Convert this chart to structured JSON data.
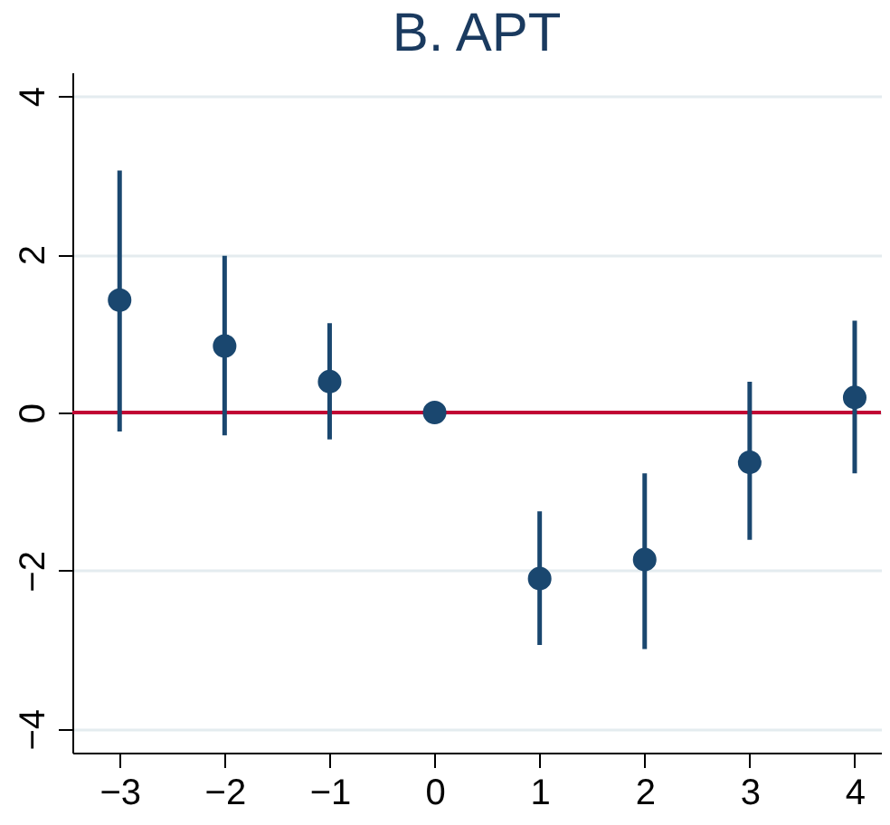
{
  "chart_data": {
    "type": "scatter",
    "title": "B. APT",
    "x": [
      -3,
      -2,
      -1,
      0,
      1,
      2,
      3,
      4
    ],
    "series": [
      {
        "color": "#1a476f",
        "values": [
          1.42,
          0.84,
          0.39,
          0,
          -2.1,
          -1.86,
          -0.63,
          0.19
        ],
        "errors": [
          [
            -0.24,
            3.06
          ],
          [
            -0.29,
            1.98
          ],
          [
            -0.34,
            1.13
          ],
          null,
          [
            -2.94,
            -1.25
          ],
          [
            -2.99,
            -0.77
          ],
          [
            -1.61,
            0.39
          ],
          [
            -0.77,
            1.16
          ]
        ]
      }
    ],
    "xlim": [
      -3.45,
      4.25
    ],
    "xticks": [
      -3,
      -2,
      -1,
      0,
      1,
      2,
      3,
      4
    ],
    "ylim": [
      -4.3,
      4.3
    ],
    "yticks": [
      -4,
      -2,
      0,
      2,
      4
    ],
    "ref_lines": [
      {
        "axis": "y",
        "value": 0,
        "color": "#c10534"
      }
    ],
    "grid": "y",
    "marker": "circle"
  }
}
